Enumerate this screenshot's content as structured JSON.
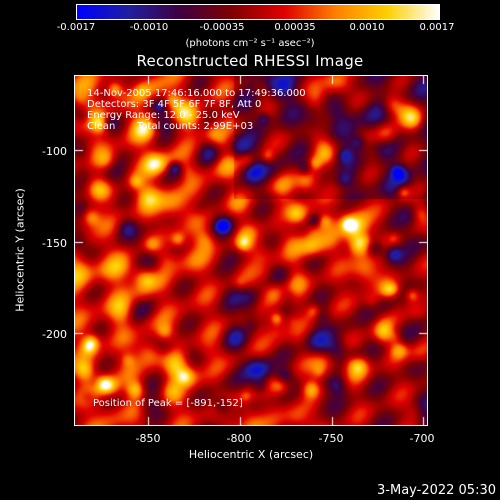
{
  "colorbar": {
    "ticks": [
      "-0.0017",
      "-0.0010",
      "-0.00035",
      "0.00035",
      "0.0010",
      "0.0017"
    ],
    "unit": "(photons cm⁻² s⁻¹ asec⁻²)",
    "colors": [
      "#0000ff",
      "#2020a0",
      "#400040",
      "#800000",
      "#e00000",
      "#ff8000",
      "#ffd000",
      "#ffffff"
    ]
  },
  "title": "Reconstructed RHESSI Image",
  "info": {
    "time_range": "14-Nov-2005 17:46:16.000 to 17:49:36.000",
    "detectors": "Detectors: 3F 4F 5F 6F 7F 8F, Att 0",
    "energy": "Energy Range: 12.0 - 25.0 keV",
    "method": "Clean",
    "counts": "Total counts: 2.99E+03",
    "peak": "Position of Peak = [-891,-152]"
  },
  "axes": {
    "xlabel": "Heliocentric X (arcsec)",
    "ylabel": "Heliocentric Y (arcsec)",
    "xticks": [
      "-850",
      "-800",
      "-750",
      "-700"
    ],
    "yticks": [
      "-100",
      "-150",
      "-200"
    ]
  },
  "date_stamp": "3-May-2022 05:30"
}
